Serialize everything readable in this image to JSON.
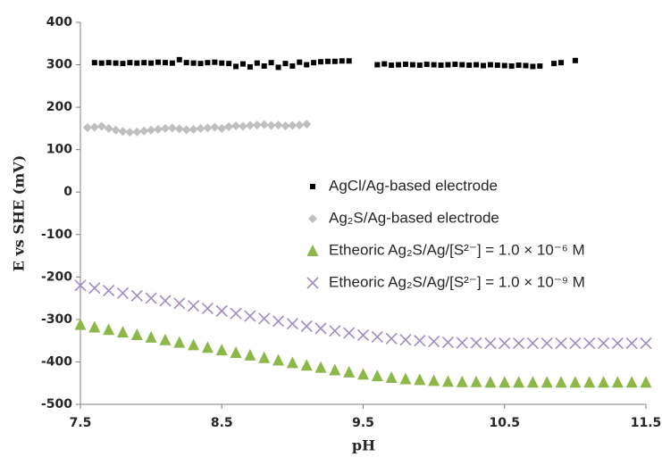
{
  "chart_data": {
    "type": "scatter",
    "xlabel": "pH",
    "ylabel": "E vs SHE (mV)",
    "xlim": [
      7.5,
      11.5
    ],
    "xticks": [
      7.5,
      8.5,
      9.5,
      10.5,
      11.5
    ],
    "ylim": [
      -500,
      400
    ],
    "yticks": [
      -500,
      -400,
      -300,
      -200,
      -100,
      0,
      100,
      200,
      300,
      400
    ],
    "series": [
      {
        "name": "AgCl/Ag-based electrode",
        "color": "#000000",
        "marker": "square",
        "x": [
          7.6,
          7.65,
          7.7,
          7.75,
          7.8,
          7.85,
          7.9,
          7.95,
          8.0,
          8.05,
          8.1,
          8.15,
          8.2,
          8.25,
          8.3,
          8.35,
          8.4,
          8.45,
          8.5,
          8.55,
          8.6,
          8.65,
          8.7,
          8.75,
          8.8,
          8.85,
          8.9,
          8.95,
          9.0,
          9.05,
          9.1,
          9.15,
          9.2,
          9.25,
          9.3,
          9.35,
          9.4,
          9.6,
          9.65,
          9.7,
          9.75,
          9.8,
          9.85,
          9.9,
          9.95,
          10.0,
          10.05,
          10.1,
          10.15,
          10.2,
          10.25,
          10.3,
          10.35,
          10.4,
          10.45,
          10.5,
          10.55,
          10.6,
          10.65,
          10.7,
          10.75,
          10.85,
          10.9,
          11.0
        ],
        "values": [
          305,
          304,
          305,
          304,
          303,
          305,
          304,
          305,
          304,
          306,
          305,
          304,
          312,
          305,
          304,
          303,
          305,
          306,
          304,
          303,
          296,
          302,
          295,
          304,
          297,
          305,
          294,
          303,
          297,
          306,
          300,
          305,
          307,
          308,
          308,
          309,
          309,
          300,
          302,
          299,
          300,
          301,
          300,
          299,
          301,
          300,
          299,
          300,
          301,
          300,
          299,
          300,
          298,
          300,
          299,
          298,
          297,
          299,
          298,
          296,
          297,
          303,
          305,
          310
        ]
      },
      {
        "name": "Ag₂S/Ag-based electrode",
        "color": "#bfbfbf",
        "marker": "diamond",
        "x": [
          7.55,
          7.6,
          7.65,
          7.7,
          7.75,
          7.8,
          7.85,
          7.9,
          7.95,
          8.0,
          8.05,
          8.1,
          8.15,
          8.2,
          8.25,
          8.3,
          8.35,
          8.4,
          8.45,
          8.5,
          8.55,
          8.6,
          8.65,
          8.7,
          8.75,
          8.8,
          8.85,
          8.9,
          8.95,
          9.0,
          9.05,
          9.1
        ],
        "values": [
          152,
          153,
          155,
          150,
          146,
          143,
          141,
          142,
          144,
          146,
          148,
          150,
          151,
          149,
          147,
          148,
          150,
          151,
          153,
          150,
          154,
          156,
          155,
          157,
          158,
          159,
          157,
          158,
          156,
          157,
          158,
          160
        ]
      },
      {
        "name": "Etheoric  Ag₂S/Ag/[S²⁻] = 1.0 × 10⁻⁶ M",
        "color": "#8cb84a",
        "marker": "triangle",
        "x": [
          7.5,
          7.6,
          7.7,
          7.8,
          7.9,
          8.0,
          8.1,
          8.2,
          8.3,
          8.4,
          8.5,
          8.6,
          8.7,
          8.8,
          8.9,
          9.0,
          9.1,
          9.2,
          9.3,
          9.4,
          9.5,
          9.6,
          9.7,
          9.8,
          9.9,
          10.0,
          10.1,
          10.2,
          10.3,
          10.4,
          10.5,
          10.6,
          10.7,
          10.8,
          10.9,
          11.0,
          11.1,
          11.2,
          11.3,
          11.4,
          11.5
        ],
        "values": [
          -312,
          -318,
          -324,
          -330,
          -336,
          -342,
          -348,
          -354,
          -360,
          -366,
          -372,
          -378,
          -384,
          -390,
          -396,
          -402,
          -408,
          -413,
          -419,
          -424,
          -429,
          -433,
          -437,
          -440,
          -442,
          -444,
          -446,
          -447,
          -447,
          -448,
          -448,
          -448,
          -448,
          -448,
          -448,
          -448,
          -448,
          -448,
          -448,
          -448,
          -448
        ]
      },
      {
        "name": "Etheoric  Ag₂S/Ag/[S²⁻] = 1.0 × 10⁻⁹ M",
        "color": "#a08cc0",
        "marker": "x",
        "x": [
          7.5,
          7.6,
          7.7,
          7.8,
          7.9,
          8.0,
          8.1,
          8.2,
          8.3,
          8.4,
          8.5,
          8.6,
          8.7,
          8.8,
          8.9,
          9.0,
          9.1,
          9.2,
          9.3,
          9.4,
          9.5,
          9.6,
          9.7,
          9.8,
          9.9,
          10.0,
          10.1,
          10.2,
          10.3,
          10.4,
          10.5,
          10.6,
          10.7,
          10.8,
          10.9,
          11.0,
          11.1,
          11.2,
          11.3,
          11.4,
          11.5
        ],
        "values": [
          -220,
          -226,
          -232,
          -238,
          -244,
          -250,
          -256,
          -262,
          -268,
          -274,
          -280,
          -286,
          -292,
          -298,
          -304,
          -310,
          -316,
          -321,
          -327,
          -332,
          -337,
          -341,
          -345,
          -348,
          -350,
          -352,
          -354,
          -355,
          -355,
          -356,
          -356,
          -356,
          -356,
          -356,
          -356,
          -356,
          -356,
          -356,
          -356,
          -356,
          -356
        ]
      }
    ]
  }
}
